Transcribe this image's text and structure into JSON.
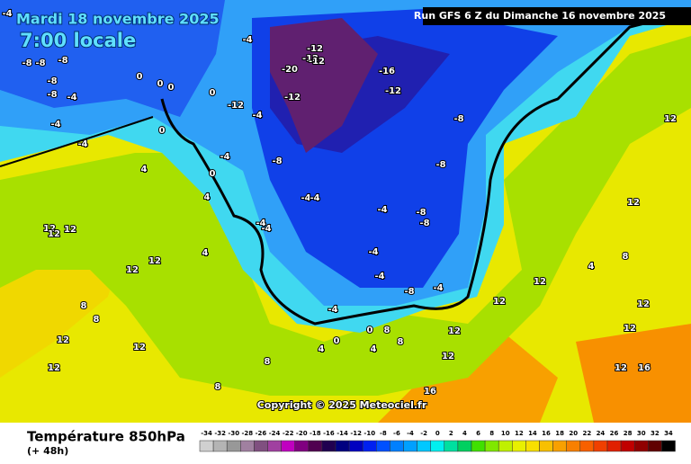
{
  "header": {
    "title": "Mardi 18 novembre 2025",
    "subtitle": "7:00 locale",
    "run": "Run GFS 6 Z du Dimanche 16 novembre 2025"
  },
  "map": {
    "copyright": "Copyright © 2025 Meteociel.fr",
    "labels": [
      "-4",
      "-8",
      "-8",
      "-8",
      "-8",
      "-4",
      "-4",
      "-4",
      "-8",
      "0",
      "0",
      "0",
      "0",
      "0",
      "-4",
      "-4",
      "-12",
      "-20",
      "-12",
      "-12",
      "-12",
      "-12",
      "-16",
      "-12",
      "-8",
      "-8",
      "-8",
      "-4",
      "4",
      "4",
      "4",
      "0",
      "-4",
      "-4",
      "-4",
      "-4",
      "-8",
      "-8",
      "-4",
      "-4",
      "-4",
      "-8",
      "-4",
      "-4",
      "0",
      "4",
      "4",
      "0",
      "8",
      "8",
      "8",
      "12",
      "12",
      "12",
      "12",
      "12",
      "12",
      "8",
      "4",
      "12",
      "12",
      "16",
      "16",
      "12",
      "12",
      "12",
      "12",
      "8",
      "8",
      "12",
      "12",
      "12",
      "12",
      "12",
      "8"
    ]
  },
  "footer": {
    "title": "Température 850hPa",
    "lead": "(+ 48h)"
  },
  "legend": {
    "values": [
      -34,
      -32,
      -30,
      -28,
      -26,
      -24,
      -22,
      -20,
      -18,
      -16,
      -14,
      -12,
      -10,
      -8,
      -6,
      -4,
      -2,
      0,
      2,
      4,
      6,
      8,
      10,
      12,
      14,
      16,
      18,
      20,
      22,
      24,
      26,
      28,
      30,
      32,
      34
    ],
    "colors": [
      "#d0d0d0",
      "#b4b4b4",
      "#989898",
      "#a080a0",
      "#805080",
      "#a040a0",
      "#c000c0",
      "#800080",
      "#500050",
      "#200050",
      "#000080",
      "#0000c0",
      "#0020f0",
      "#0050ff",
      "#0080ff",
      "#00a0ff",
      "#00c8ff",
      "#00f0f0",
      "#00e0a0",
      "#00d060",
      "#40e000",
      "#80e800",
      "#c0f000",
      "#e8f000",
      "#f8e000",
      "#f8c000",
      "#f8a000",
      "#f88000",
      "#f86000",
      "#f04000",
      "#e02000",
      "#c00000",
      "#900000",
      "#600000",
      "#000000"
    ]
  }
}
